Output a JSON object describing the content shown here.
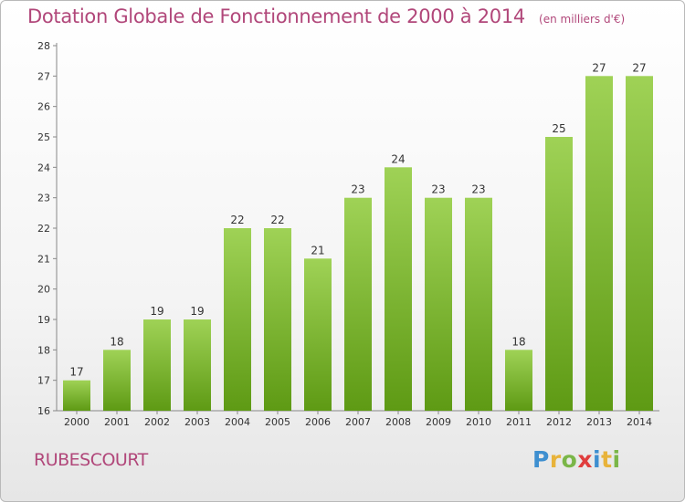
{
  "header": {
    "title": "Dotation Globale de Fonctionnement de 2000 à 2014",
    "subtitle": "(en milliers d'€)"
  },
  "commune": "RUBESCOURT",
  "logo": {
    "letters": [
      "P",
      "r",
      "o",
      "x",
      "i",
      "t",
      "i"
    ],
    "colors": [
      "#3e8fd0",
      "#e8b33a",
      "#7ab648",
      "#e03d3d",
      "#3e8fd0",
      "#e8b33a",
      "#7ab648"
    ]
  },
  "chart_data": {
    "type": "bar",
    "title": "Dotation Globale de Fonctionnement de 2000 à 2014",
    "subtitle": "(en milliers d'€)",
    "categories": [
      "2000",
      "2001",
      "2002",
      "2003",
      "2004",
      "2005",
      "2006",
      "2007",
      "2008",
      "2009",
      "2010",
      "2011",
      "2012",
      "2013",
      "2014"
    ],
    "values": [
      17,
      18,
      19,
      19,
      22,
      22,
      21,
      23,
      24,
      23,
      23,
      18,
      25,
      27,
      27
    ],
    "ylim": [
      16,
      28
    ],
    "yticks": [
      16,
      17,
      18,
      19,
      20,
      21,
      22,
      23,
      24,
      25,
      26,
      27,
      28
    ],
    "grid": false,
    "data_labels": true,
    "bar_color_top": "#9fd256",
    "bar_color_bottom": "#5e9a14"
  }
}
